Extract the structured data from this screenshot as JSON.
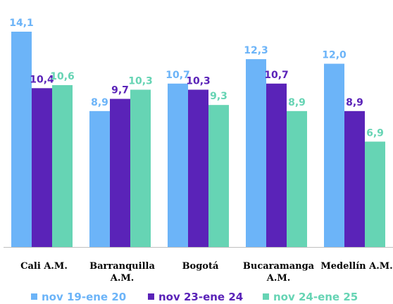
{
  "chart_data": {
    "type": "bar",
    "categories": [
      [
        "Cali A.M."
      ],
      [
        "Barranquilla",
        "A.M."
      ],
      [
        "Bogotá"
      ],
      [
        "Bucaramanga",
        "A.M."
      ],
      [
        "Medellín A.M."
      ]
    ],
    "series": [
      {
        "name": "nov 19-ene 20",
        "color": "#6CB4F8",
        "values": [
          14.1,
          8.9,
          10.7,
          12.3,
          12.0
        ],
        "labels": [
          "14,1",
          "8,9",
          "10,7",
          "12,3",
          "12,0"
        ]
      },
      {
        "name": "nov 23-ene 24",
        "color": "#5A23B8",
        "values": [
          10.4,
          9.7,
          10.3,
          10.7,
          8.9
        ],
        "labels": [
          "10,4",
          "9,7",
          "10,3",
          "10,7",
          "8,9"
        ]
      },
      {
        "name": "nov 24-ene 25",
        "color": "#66D4B4",
        "values": [
          10.6,
          10.3,
          9.3,
          8.9,
          6.9
        ],
        "labels": [
          "10,6",
          "10,3",
          "9,3",
          "8,9",
          "6,9"
        ]
      }
    ],
    "ylim": [
      0,
      14.1
    ],
    "grid": false,
    "legend": "bottom",
    "data_labels": true
  }
}
